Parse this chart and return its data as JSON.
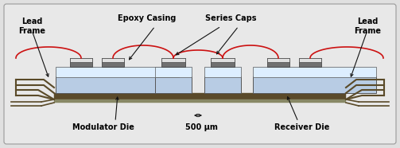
{
  "bg_color": "#e0e0e0",
  "fig_bg": "#e0e0e0",
  "lead_frame_color": "#5a4a2a",
  "lead_frame_fill": "#c8a84a",
  "substrate_color": "#b8cce4",
  "substrate_top_color": "#ddeeff",
  "cap_body_color": "#707070",
  "cap_top_color": "#e0e0e0",
  "bond_wire_color": "#cc1111",
  "rail_color": "#5a4a2a",
  "arrow_color": "#111111",
  "labels": {
    "lead_frame_left": "Lead\nFrame",
    "lead_frame_right": "Lead\nFrame",
    "epoxy_casing": "Epoxy Casing",
    "series_caps": "Series Caps",
    "modulator_die": "Modulator Die",
    "receiver_die": "Receiver Die",
    "scale": "500 μm"
  },
  "label_fontsize": 7.0,
  "label_bold": true
}
